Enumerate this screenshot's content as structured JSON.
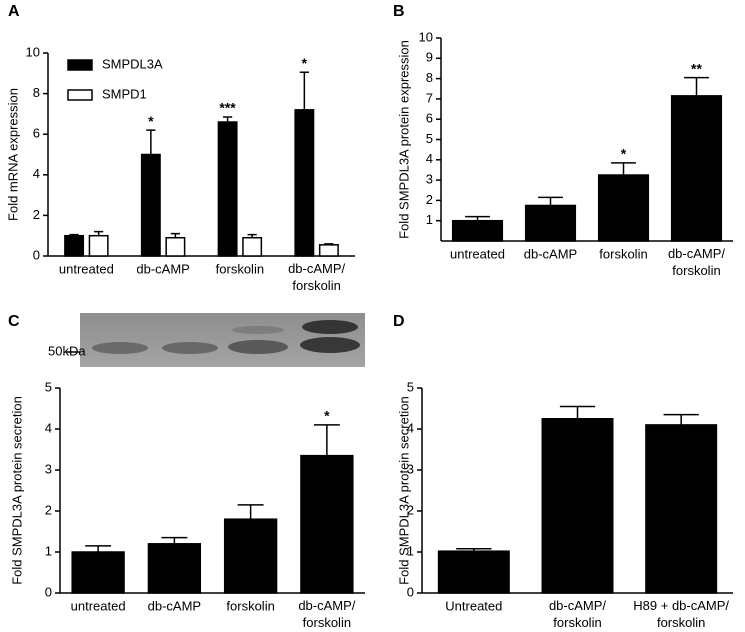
{
  "chart_data": [
    {
      "type": "bar",
      "label": "A",
      "y_label": "Fold mRNA expression",
      "categories": [
        "untreated",
        "db-cAMP",
        "forskolin",
        "db-cAMP/ forskolin"
      ],
      "series": [
        {
          "name": "SMPDL3A",
          "color": "#000000",
          "edgecolor": "#000000",
          "values": [
            1.0,
            5.0,
            6.6,
            7.2
          ],
          "errors": [
            0.05,
            1.2,
            0.25,
            1.85
          ],
          "significance": [
            null,
            "*",
            "***",
            "*"
          ]
        },
        {
          "name": "SMPD1",
          "color": "#ffffff",
          "edgecolor": "#000000",
          "values": [
            1.0,
            0.9,
            0.9,
            0.55
          ],
          "errors": [
            0.2,
            0.2,
            0.15,
            0.05
          ]
        }
      ],
      "ylim": [
        0,
        10
      ],
      "yticks": [
        0,
        2,
        4,
        6,
        8,
        10
      ],
      "legend": "upper left"
    },
    {
      "type": "bar",
      "label": "B",
      "y_label": "Fold SMPDL3A protein expression",
      "categories": [
        "untreated",
        "db-cAMP",
        "forskolin",
        "db-cAMP/ forskolin"
      ],
      "series": [
        {
          "color": "#000000",
          "edgecolor": "#000000",
          "values": [
            1.0,
            1.75,
            3.25,
            7.15
          ],
          "errors": [
            0.2,
            0.4,
            0.6,
            0.9
          ],
          "significance": [
            null,
            null,
            "*",
            "**"
          ]
        }
      ],
      "ylim": [
        0,
        10
      ],
      "yticks": [
        1,
        2,
        3,
        4,
        5,
        6,
        7,
        8,
        9,
        10
      ]
    },
    {
      "type": "bar",
      "label": "C",
      "y_label": "Fold SMPDL3A protein secretion",
      "blot_marker": "50kDa",
      "categories": [
        "untreated",
        "db-cAMP",
        "forskolin",
        "db-cAMP/ forskolin"
      ],
      "series": [
        {
          "color": "#000000",
          "edgecolor": "#000000",
          "values": [
            1.0,
            1.2,
            1.8,
            3.35
          ],
          "errors": [
            0.15,
            0.15,
            0.35,
            0.75
          ],
          "significance": [
            null,
            null,
            null,
            "*"
          ]
        }
      ],
      "ylim": [
        0,
        5
      ],
      "yticks": [
        0,
        1,
        2,
        3,
        4,
        5
      ]
    },
    {
      "type": "bar",
      "label": "D",
      "y_label": "Fold SMPDL3A protein secretion",
      "categories": [
        "Untreated",
        "db-cAMP/ forskolin",
        "H89 + db-cAMP/ forskolin"
      ],
      "series": [
        {
          "color": "#000000",
          "edgecolor": "#000000",
          "values": [
            1.02,
            4.25,
            4.1
          ],
          "errors": [
            0.06,
            0.3,
            0.25
          ]
        }
      ],
      "ylim": [
        0,
        5
      ],
      "yticks": [
        0,
        1,
        2,
        3,
        4,
        5
      ]
    }
  ]
}
